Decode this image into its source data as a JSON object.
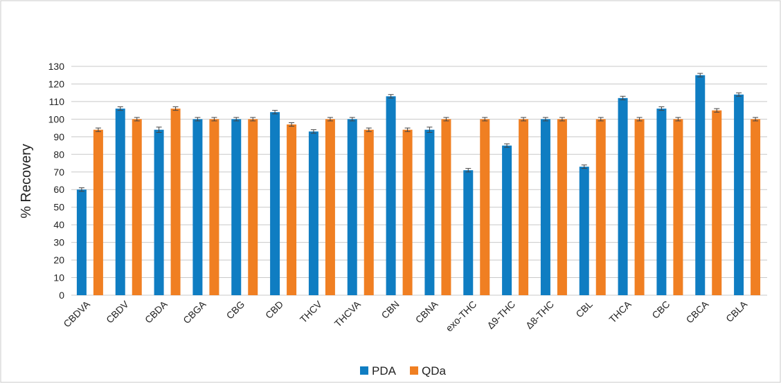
{
  "chart_data": {
    "type": "bar",
    "y_label": "% Recovery",
    "categories": [
      "CBDVA",
      "CBDV",
      "CBDA",
      "CBGA",
      "CBG",
      "CBD",
      "THCV",
      "THCVA",
      "CBN",
      "CBNA",
      "exo-THC",
      "Δ9-THC",
      "Δ8-THC",
      "CBL",
      "THCA",
      "CBC",
      "CBCA",
      "CBLA"
    ],
    "series": [
      {
        "name": "PDA",
        "color": "#0f7dc2",
        "values": [
          60,
          106,
          94,
          100,
          100,
          104,
          93,
          100,
          113,
          94,
          71,
          85,
          100,
          73,
          112,
          106,
          125,
          114
        ],
        "errors": [
          1,
          1,
          1.5,
          1,
          1,
          1,
          1,
          1,
          1,
          1.5,
          1,
          1,
          1,
          1,
          1,
          1,
          1,
          1
        ]
      },
      {
        "name": "QDa",
        "color": "#f07f22",
        "values": [
          94,
          100,
          106,
          100,
          100,
          97,
          100,
          94,
          94,
          100,
          100,
          100,
          100,
          100,
          100,
          100,
          105,
          100
        ],
        "errors": [
          1,
          1,
          1,
          1,
          1,
          1,
          1,
          1,
          1,
          1,
          1,
          1,
          1,
          1,
          1,
          1,
          1,
          1
        ]
      }
    ],
    "ylim": [
      0,
      130
    ],
    "yticks": [
      0,
      10,
      20,
      30,
      40,
      50,
      60,
      70,
      80,
      90,
      100,
      110,
      120,
      130
    ],
    "grid": true,
    "legend": "bottom"
  }
}
